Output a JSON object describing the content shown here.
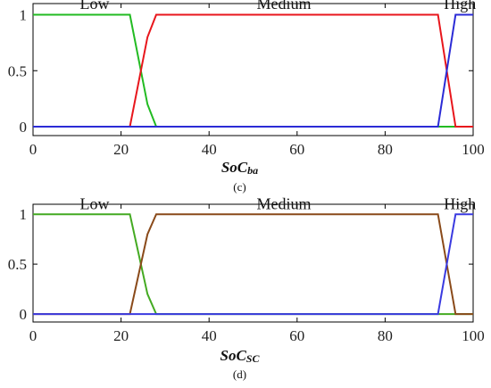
{
  "chart_data": [
    {
      "type": "line",
      "caption": "(c)",
      "xlabel_main": "SoC",
      "xlabel_sub": "ba",
      "xlim": [
        0,
        100
      ],
      "ylim": [
        -0.08,
        1.1
      ],
      "xticks": [
        0,
        20,
        40,
        60,
        80,
        100
      ],
      "yticks": [
        0,
        0.5,
        1
      ],
      "ytick_labels": [
        "0",
        "0.5",
        "1"
      ],
      "series": [
        {
          "name": "Low",
          "color": "#22bb22",
          "x": [
            0,
            22,
            26,
            28,
            100
          ],
          "y": [
            1,
            1,
            0.2,
            0,
            0
          ]
        },
        {
          "name": "Medium",
          "color": "#e8161c",
          "x": [
            0,
            22,
            26,
            28,
            92,
            96,
            100
          ],
          "y": [
            0,
            0,
            0.8,
            1,
            1,
            0,
            0
          ]
        },
        {
          "name": "High",
          "color": "#2b2bd6",
          "x": [
            0,
            92,
            96,
            100
          ],
          "y": [
            0,
            0,
            1,
            1
          ]
        }
      ],
      "labels": [
        {
          "text": "Low",
          "x": 14,
          "y": 1.07
        },
        {
          "text": "Medium",
          "x": 57,
          "y": 1.07
        },
        {
          "text": "High",
          "x": 97,
          "y": 1.07
        }
      ]
    },
    {
      "type": "line",
      "caption": "(d)",
      "xlabel_main": "SoC",
      "xlabel_sub": "SC",
      "xlim": [
        0,
        100
      ],
      "ylim": [
        -0.08,
        1.1
      ],
      "xticks": [
        0,
        20,
        40,
        60,
        80,
        100
      ],
      "yticks": [
        0,
        0.5,
        1
      ],
      "ytick_labels": [
        "0",
        "0.5",
        "1"
      ],
      "series": [
        {
          "name": "Low",
          "color": "#44aa22",
          "x": [
            0,
            22,
            26,
            28,
            100
          ],
          "y": [
            1,
            1,
            0.2,
            0,
            0
          ]
        },
        {
          "name": "Medium",
          "color": "#8a4a1a",
          "x": [
            0,
            22,
            26,
            28,
            92,
            96,
            100
          ],
          "y": [
            0,
            0,
            0.8,
            1,
            1,
            0,
            0
          ]
        },
        {
          "name": "High",
          "color": "#3a3ae0",
          "x": [
            0,
            92,
            96,
            100
          ],
          "y": [
            0,
            0,
            1,
            1
          ]
        }
      ],
      "labels": [
        {
          "text": "Low",
          "x": 14,
          "y": 1.07
        },
        {
          "text": "Medium",
          "x": 57,
          "y": 1.07
        },
        {
          "text": "High",
          "x": 97,
          "y": 1.07
        }
      ]
    }
  ]
}
